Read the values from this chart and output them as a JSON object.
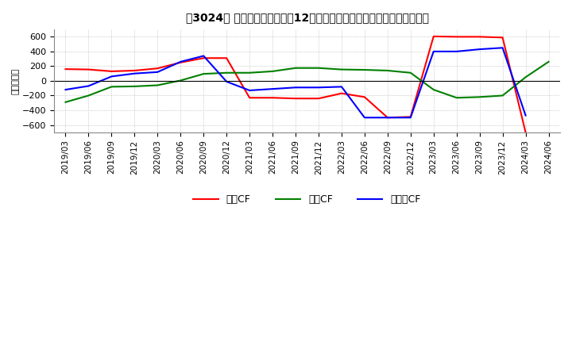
{
  "title": "　3024、 キャッシュフローの12か月移動合計の対前年同期増減額の推移",
  "title_text": "【3024】 キャッシュフローの12か月移動合計の対前年同期増減額の推移",
  "ylabel": "（百万円）",
  "ylim": [
    -700,
    700
  ],
  "yticks": [
    -600,
    -400,
    -200,
    0,
    200,
    400,
    600
  ],
  "dates": [
    "2019/03",
    "2019/06",
    "2019/09",
    "2019/12",
    "2020/03",
    "2020/06",
    "2020/09",
    "2020/12",
    "2021/03",
    "2021/06",
    "2021/09",
    "2021/12",
    "2022/03",
    "2022/06",
    "2022/09",
    "2022/12",
    "2023/03",
    "2023/06",
    "2023/09",
    "2023/12",
    "2024/03",
    "2024/06"
  ],
  "eigyo_cf": [
    160,
    155,
    130,
    140,
    170,
    250,
    310,
    310,
    -230,
    -230,
    -240,
    -240,
    -170,
    -220,
    -500,
    -490,
    605,
    600,
    600,
    590,
    -700,
    null
  ],
  "toshi_cf": [
    -290,
    -200,
    -80,
    -75,
    -60,
    5,
    95,
    110,
    110,
    130,
    175,
    175,
    155,
    150,
    140,
    110,
    -120,
    -230,
    -220,
    -200,
    50,
    260
  ],
  "free_cf": [
    -120,
    -70,
    60,
    100,
    120,
    260,
    340,
    -10,
    -130,
    -110,
    -90,
    -90,
    -80,
    -500,
    -500,
    -500,
    400,
    400,
    430,
    450,
    -470,
    null
  ],
  "eigyo_color": "#ff0000",
  "toshi_color": "#008000",
  "free_color": "#0000ff",
  "legend_labels": [
    "営業CF",
    "投資CF",
    "フリーCF"
  ],
  "background": "#ffffff",
  "grid_color": "#aaaaaa",
  "grid_style": ":"
}
